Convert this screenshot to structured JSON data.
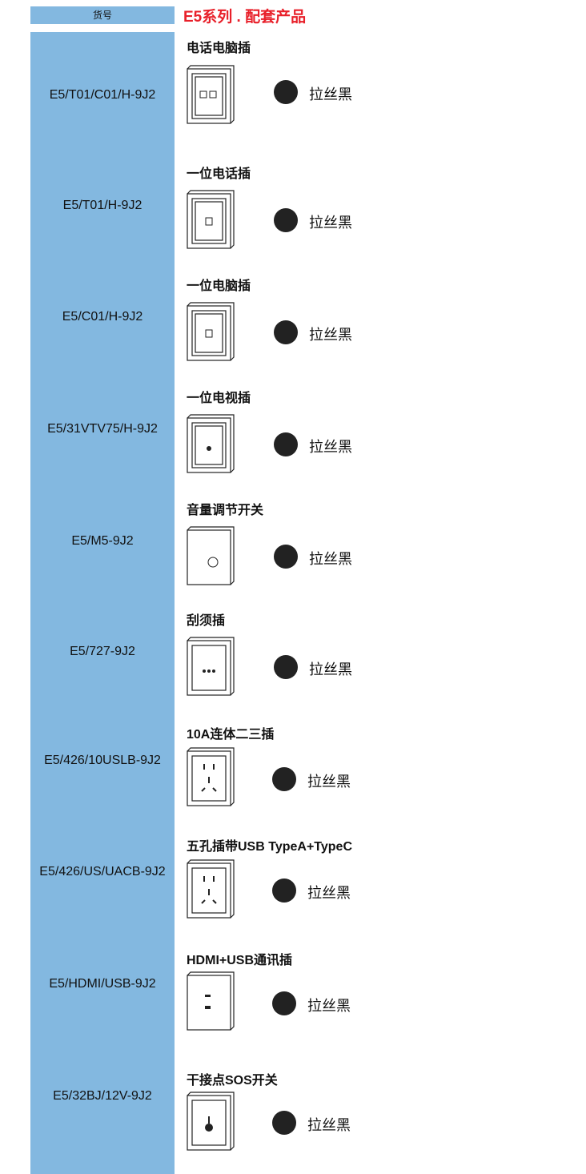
{
  "header": {
    "label": "货号",
    "title": "E5系列 . 配套产品"
  },
  "items": [
    {
      "code": "E5/T01/C01/H-9J2",
      "name": "电话电脑插",
      "finish": "拉丝黑"
    },
    {
      "code": "E5/T01/H-9J2",
      "name": "一位电话插",
      "finish": "拉丝黑"
    },
    {
      "code": "E5/C01/H-9J2",
      "name": "一位电脑插",
      "finish": "拉丝黑"
    },
    {
      "code": "E5/31VTV75/H-9J2",
      "name": "一位电视插",
      "finish": "拉丝黑"
    },
    {
      "code": "E5/M5-9J2",
      "name": "音量调节开关",
      "finish": "拉丝黑"
    },
    {
      "code": "E5/727-9J2",
      "name": "刮须插",
      "finish": "拉丝黑"
    },
    {
      "code": "E5/426/10USLB-9J2",
      "name": "10A连体二三插",
      "finish": "拉丝黑"
    },
    {
      "code": "E5/426/US/UACB-9J2",
      "name": "五孔插带USB TypeA+TypeC",
      "finish": "拉丝黑"
    },
    {
      "code": "E5/HDMI/USB-9J2",
      "name": "HDMI+USB通讯插",
      "finish": "拉丝黑"
    },
    {
      "code": "E5/32BJ/12V-9J2",
      "name": "干接点SOS开关",
      "finish": "拉丝黑"
    }
  ]
}
